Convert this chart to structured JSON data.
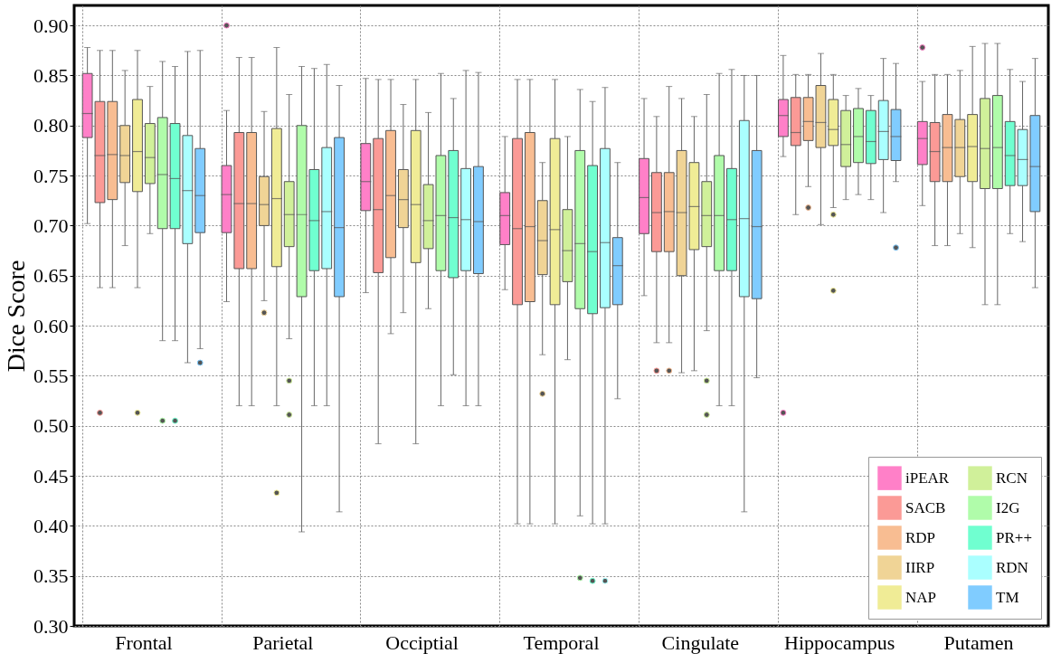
{
  "chart_data": {
    "type": "box",
    "ylabel": "Dice Score",
    "categories": [
      "Frontal",
      "Parietal",
      "Occiptial",
      "Temporal",
      "Cingulate",
      "Hippocampus",
      "Putamen"
    ],
    "ylim": [
      0.3,
      0.92
    ],
    "yticks": [
      {
        "value": 0.3,
        "label": "0.30"
      },
      {
        "value": 0.35,
        "label": "0.35"
      },
      {
        "value": 0.4,
        "label": "0.40"
      },
      {
        "value": 0.45,
        "label": "0.45"
      },
      {
        "value": 0.5,
        "label": "0.50"
      },
      {
        "value": 0.55,
        "label": "0.55"
      },
      {
        "value": 0.6,
        "label": "0.60"
      },
      {
        "value": 0.65,
        "label": "0.65"
      },
      {
        "value": 0.7,
        "label": "0.70"
      },
      {
        "value": 0.75,
        "label": "0.75"
      },
      {
        "value": 0.8,
        "label": "0.80"
      },
      {
        "value": 0.85,
        "label": "0.85"
      },
      {
        "value": 0.9,
        "label": "0.90"
      }
    ],
    "grid": true,
    "legend": "bottom right",
    "series": [
      {
        "name": "iPEAR",
        "color": "#ff80c8",
        "boxes": [
          {
            "low": 0.702,
            "q1": 0.788,
            "median": 0.812,
            "q3": 0.852,
            "high": 0.878
          },
          {
            "low": 0.624,
            "q1": 0.693,
            "median": 0.731,
            "q3": 0.76,
            "high": 0.815,
            "outliers": [
              0.9
            ]
          },
          {
            "low": 0.633,
            "q1": 0.715,
            "median": 0.744,
            "q3": 0.782,
            "high": 0.847
          },
          {
            "low": 0.636,
            "q1": 0.681,
            "median": 0.71,
            "q3": 0.733,
            "high": 0.789
          },
          {
            "low": 0.63,
            "q1": 0.692,
            "median": 0.728,
            "q3": 0.767,
            "high": 0.827
          },
          {
            "low": 0.769,
            "q1": 0.789,
            "median": 0.81,
            "q3": 0.826,
            "high": 0.87,
            "outliers": [
              0.513
            ]
          },
          {
            "low": 0.72,
            "q1": 0.761,
            "median": 0.787,
            "q3": 0.804,
            "high": 0.844,
            "outliers": [
              0.878
            ]
          }
        ]
      },
      {
        "name": "SACB",
        "color": "#fb9a96",
        "boxes": [
          {
            "low": 0.638,
            "q1": 0.723,
            "median": 0.77,
            "q3": 0.824,
            "high": 0.875,
            "outliers": [
              0.513
            ]
          },
          {
            "low": 0.52,
            "q1": 0.657,
            "median": 0.722,
            "q3": 0.793,
            "high": 0.868
          },
          {
            "low": 0.482,
            "q1": 0.653,
            "median": 0.716,
            "q3": 0.787,
            "high": 0.846
          },
          {
            "low": 0.402,
            "q1": 0.621,
            "median": 0.697,
            "q3": 0.787,
            "high": 0.846
          },
          {
            "low": 0.583,
            "q1": 0.674,
            "median": 0.713,
            "q3": 0.753,
            "high": 0.809,
            "outliers": [
              0.555
            ]
          },
          {
            "low": 0.711,
            "q1": 0.78,
            "median": 0.793,
            "q3": 0.828,
            "high": 0.851
          },
          {
            "low": 0.68,
            "q1": 0.744,
            "median": 0.774,
            "q3": 0.803,
            "high": 0.851
          }
        ]
      },
      {
        "name": "RDP",
        "color": "#f8bd92",
        "boxes": [
          {
            "low": 0.638,
            "q1": 0.726,
            "median": 0.771,
            "q3": 0.824,
            "high": 0.875
          },
          {
            "low": 0.52,
            "q1": 0.657,
            "median": 0.722,
            "q3": 0.793,
            "high": 0.868
          },
          {
            "low": 0.592,
            "q1": 0.668,
            "median": 0.73,
            "q3": 0.795,
            "high": 0.846
          },
          {
            "low": 0.402,
            "q1": 0.624,
            "median": 0.699,
            "q3": 0.793,
            "high": 0.846
          },
          {
            "low": 0.583,
            "q1": 0.674,
            "median": 0.714,
            "q3": 0.753,
            "high": 0.839,
            "outliers": [
              0.555
            ]
          },
          {
            "low": 0.739,
            "q1": 0.785,
            "median": 0.804,
            "q3": 0.828,
            "high": 0.851,
            "outliers": [
              0.718
            ]
          },
          {
            "low": 0.68,
            "q1": 0.744,
            "median": 0.778,
            "q3": 0.811,
            "high": 0.851
          }
        ]
      },
      {
        "name": "IIRP",
        "color": "#f0d496",
        "boxes": [
          {
            "low": 0.68,
            "q1": 0.743,
            "median": 0.77,
            "q3": 0.8,
            "high": 0.855
          },
          {
            "low": 0.625,
            "q1": 0.7,
            "median": 0.721,
            "q3": 0.749,
            "high": 0.814,
            "outliers": [
              0.613
            ]
          },
          {
            "low": 0.613,
            "q1": 0.698,
            "median": 0.726,
            "q3": 0.756,
            "high": 0.821
          },
          {
            "low": 0.571,
            "q1": 0.651,
            "median": 0.685,
            "q3": 0.725,
            "high": 0.763,
            "outliers": [
              0.532
            ]
          },
          {
            "low": 0.553,
            "q1": 0.65,
            "median": 0.713,
            "q3": 0.775,
            "high": 0.827
          },
          {
            "low": 0.701,
            "q1": 0.778,
            "median": 0.803,
            "q3": 0.84,
            "high": 0.872
          },
          {
            "low": 0.692,
            "q1": 0.749,
            "median": 0.778,
            "q3": 0.806,
            "high": 0.855
          }
        ]
      },
      {
        "name": "NAP",
        "color": "#f0ec96",
        "boxes": [
          {
            "low": 0.638,
            "q1": 0.734,
            "median": 0.774,
            "q3": 0.826,
            "high": 0.875,
            "outliers": [
              0.513
            ]
          },
          {
            "low": 0.52,
            "q1": 0.659,
            "median": 0.727,
            "q3": 0.797,
            "high": 0.878,
            "outliers": [
              0.433
            ]
          },
          {
            "low": 0.482,
            "q1": 0.663,
            "median": 0.721,
            "q3": 0.795,
            "high": 0.846
          },
          {
            "low": 0.402,
            "q1": 0.621,
            "median": 0.696,
            "q3": 0.787,
            "high": 0.846
          },
          {
            "low": 0.555,
            "q1": 0.676,
            "median": 0.719,
            "q3": 0.763,
            "high": 0.809
          },
          {
            "low": 0.718,
            "q1": 0.78,
            "median": 0.796,
            "q3": 0.826,
            "high": 0.851,
            "outliers": [
              0.711,
              0.635
            ]
          },
          {
            "low": 0.678,
            "q1": 0.744,
            "median": 0.779,
            "q3": 0.811,
            "high": 0.879
          }
        ]
      },
      {
        "name": "RCN",
        "color": "#d0f09a",
        "boxes": [
          {
            "low": 0.692,
            "q1": 0.742,
            "median": 0.768,
            "q3": 0.802,
            "high": 0.839
          },
          {
            "low": 0.587,
            "q1": 0.679,
            "median": 0.711,
            "q3": 0.744,
            "high": 0.831,
            "outliers": [
              0.545,
              0.511
            ]
          },
          {
            "low": 0.617,
            "q1": 0.677,
            "median": 0.705,
            "q3": 0.741,
            "high": 0.813
          },
          {
            "low": 0.566,
            "q1": 0.644,
            "median": 0.675,
            "q3": 0.716,
            "high": 0.789
          },
          {
            "low": 0.595,
            "q1": 0.679,
            "median": 0.71,
            "q3": 0.744,
            "high": 0.831,
            "outliers": [
              0.545,
              0.511
            ]
          },
          {
            "low": 0.726,
            "q1": 0.759,
            "median": 0.781,
            "q3": 0.815,
            "high": 0.83
          },
          {
            "low": 0.621,
            "q1": 0.737,
            "median": 0.777,
            "q3": 0.827,
            "high": 0.882
          }
        ]
      },
      {
        "name": "I2G",
        "color": "#b0fcaa",
        "boxes": [
          {
            "low": 0.585,
            "q1": 0.697,
            "median": 0.751,
            "q3": 0.808,
            "high": 0.864,
            "outliers": [
              0.505
            ]
          },
          {
            "low": 0.394,
            "q1": 0.629,
            "median": 0.711,
            "q3": 0.8,
            "high": 0.859
          },
          {
            "low": 0.52,
            "q1": 0.655,
            "median": 0.71,
            "q3": 0.77,
            "high": 0.852
          },
          {
            "low": 0.41,
            "q1": 0.617,
            "median": 0.682,
            "q3": 0.775,
            "high": 0.836,
            "outliers": [
              0.348
            ]
          },
          {
            "low": 0.52,
            "q1": 0.655,
            "median": 0.71,
            "q3": 0.77,
            "high": 0.852
          },
          {
            "low": 0.731,
            "q1": 0.763,
            "median": 0.789,
            "q3": 0.817,
            "high": 0.837
          },
          {
            "low": 0.621,
            "q1": 0.737,
            "median": 0.778,
            "q3": 0.83,
            "high": 0.882
          }
        ]
      },
      {
        "name": "PR++",
        "color": "#70ffd0",
        "boxes": [
          {
            "low": 0.585,
            "q1": 0.697,
            "median": 0.747,
            "q3": 0.802,
            "high": 0.859,
            "outliers": [
              0.505
            ]
          },
          {
            "low": 0.52,
            "q1": 0.655,
            "median": 0.705,
            "q3": 0.756,
            "high": 0.857
          },
          {
            "low": 0.551,
            "q1": 0.648,
            "median": 0.708,
            "q3": 0.775,
            "high": 0.827
          },
          {
            "low": 0.402,
            "q1": 0.612,
            "median": 0.674,
            "q3": 0.76,
            "high": 0.824,
            "outliers": [
              0.345
            ]
          },
          {
            "low": 0.52,
            "q1": 0.655,
            "median": 0.706,
            "q3": 0.757,
            "high": 0.856
          },
          {
            "low": 0.726,
            "q1": 0.762,
            "median": 0.784,
            "q3": 0.815,
            "high": 0.83
          },
          {
            "low": 0.692,
            "q1": 0.74,
            "median": 0.77,
            "q3": 0.804,
            "high": 0.856
          }
        ]
      },
      {
        "name": "RDN",
        "color": "#aaffff",
        "boxes": [
          {
            "low": 0.563,
            "q1": 0.682,
            "median": 0.735,
            "q3": 0.79,
            "high": 0.874
          },
          {
            "low": 0.52,
            "q1": 0.657,
            "median": 0.714,
            "q3": 0.778,
            "high": 0.861
          },
          {
            "low": 0.52,
            "q1": 0.655,
            "median": 0.706,
            "q3": 0.757,
            "high": 0.855
          },
          {
            "low": 0.402,
            "q1": 0.618,
            "median": 0.683,
            "q3": 0.777,
            "high": 0.838,
            "outliers": [
              0.345
            ]
          },
          {
            "low": 0.414,
            "q1": 0.629,
            "median": 0.707,
            "q3": 0.805,
            "high": 0.85
          },
          {
            "low": 0.713,
            "q1": 0.766,
            "median": 0.794,
            "q3": 0.825,
            "high": 0.867
          },
          {
            "low": 0.684,
            "q1": 0.74,
            "median": 0.766,
            "q3": 0.796,
            "high": 0.844
          }
        ]
      },
      {
        "name": "TM",
        "color": "#80ccff",
        "boxes": [
          {
            "low": 0.577,
            "q1": 0.693,
            "median": 0.73,
            "q3": 0.777,
            "high": 0.875,
            "outliers": [
              0.563
            ]
          },
          {
            "low": 0.414,
            "q1": 0.629,
            "median": 0.698,
            "q3": 0.788,
            "high": 0.84
          },
          {
            "low": 0.52,
            "q1": 0.652,
            "median": 0.704,
            "q3": 0.759,
            "high": 0.853
          },
          {
            "low": 0.527,
            "q1": 0.621,
            "median": 0.66,
            "q3": 0.688,
            "high": 0.763
          },
          {
            "low": 0.548,
            "q1": 0.627,
            "median": 0.699,
            "q3": 0.775,
            "high": 0.85
          },
          {
            "low": 0.744,
            "q1": 0.765,
            "median": 0.789,
            "q3": 0.816,
            "high": 0.862,
            "outliers": [
              0.678
            ]
          },
          {
            "low": 0.638,
            "q1": 0.714,
            "median": 0.759,
            "q3": 0.81,
            "high": 0.867
          }
        ]
      }
    ]
  }
}
